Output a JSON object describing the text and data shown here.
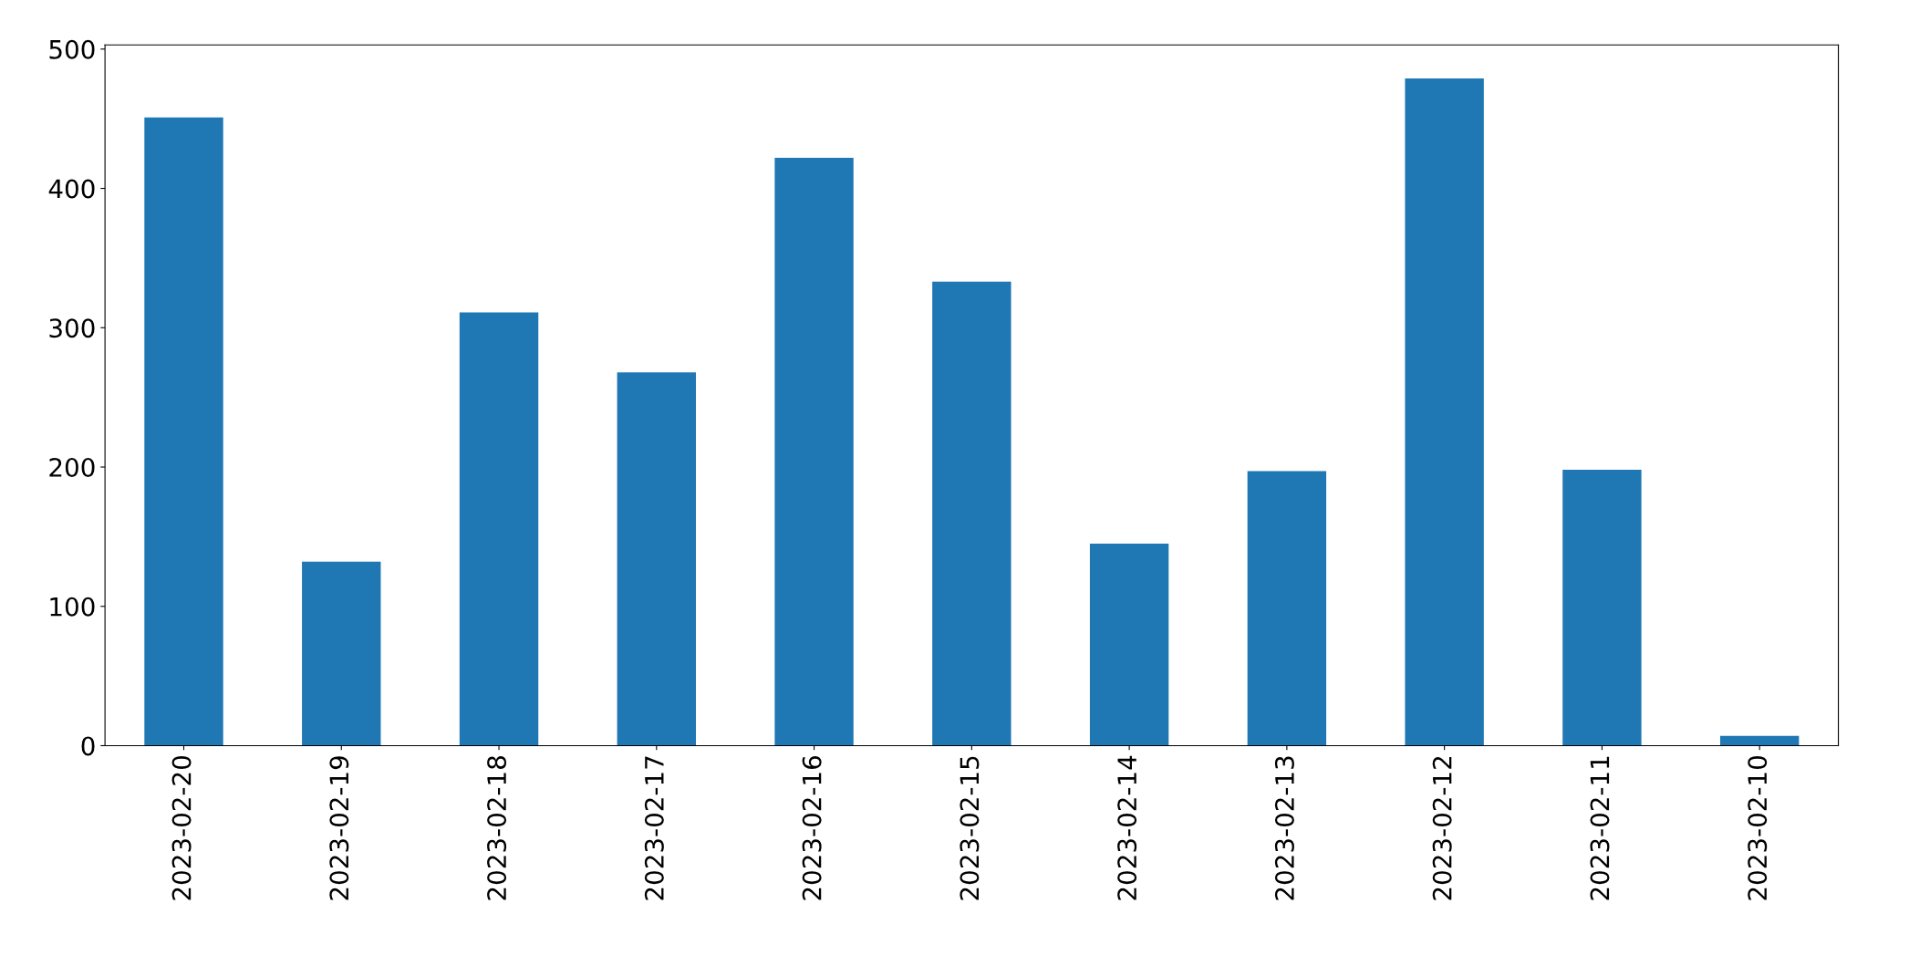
{
  "chart_data": {
    "type": "bar",
    "categories": [
      "2023-02-20",
      "2023-02-19",
      "2023-02-18",
      "2023-02-17",
      "2023-02-16",
      "2023-02-15",
      "2023-02-14",
      "2023-02-13",
      "2023-02-12",
      "2023-02-11",
      "2023-02-10"
    ],
    "values": [
      451,
      132,
      311,
      268,
      422,
      333,
      145,
      197,
      479,
      198,
      7
    ],
    "color": "#1f77b4",
    "ylim": [
      0,
      503
    ],
    "yticks": [
      0,
      100,
      200,
      300,
      400,
      500
    ],
    "grid": false
  }
}
